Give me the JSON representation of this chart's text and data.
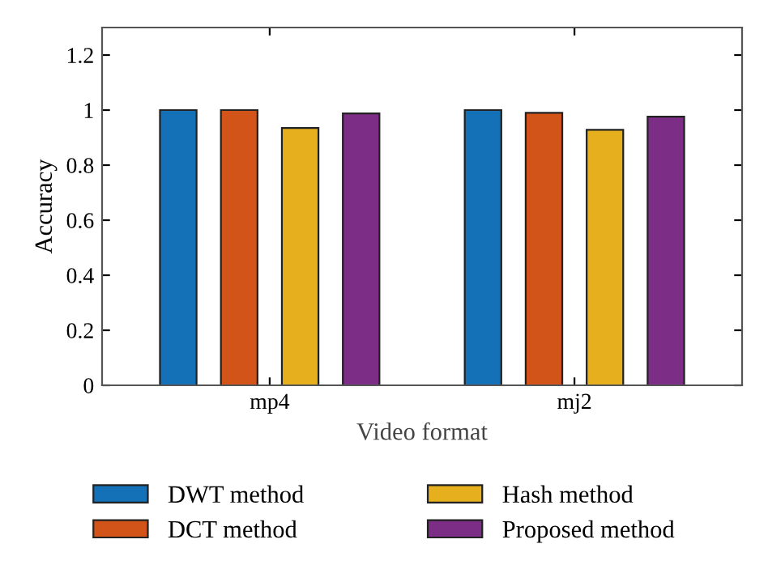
{
  "chart_data": {
    "type": "bar",
    "xlabel": "Video format",
    "ylabel": "Accuracy",
    "categories": [
      "mp4",
      "mj2"
    ],
    "series": [
      {
        "name": "DWT method",
        "color": "#1471b8",
        "values": [
          1.0,
          1.0
        ]
      },
      {
        "name": "DCT method",
        "color": "#d35419",
        "values": [
          1.0,
          0.99
        ]
      },
      {
        "name": "Hash method",
        "color": "#e6af1e",
        "values": [
          0.935,
          0.928
        ]
      },
      {
        "name": "Proposed method",
        "color": "#7c2e86",
        "values": [
          0.988,
          0.976
        ]
      }
    ],
    "ylim": [
      0,
      1.3
    ],
    "yticks": [
      0,
      0.2,
      0.4,
      0.6,
      0.8,
      1,
      1.2
    ],
    "grid": false,
    "legend": "bottom"
  }
}
